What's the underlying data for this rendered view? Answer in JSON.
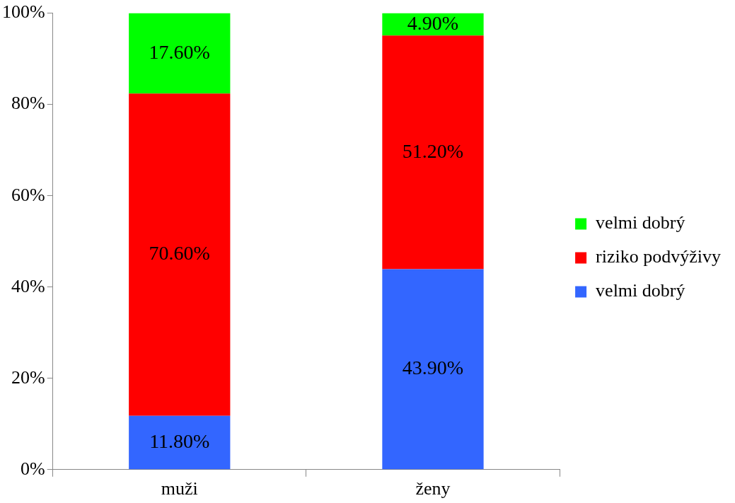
{
  "chart_data": {
    "type": "bar",
    "stacked": true,
    "categories": [
      "muži",
      "ženy"
    ],
    "ylim": [
      0,
      100
    ],
    "yticks": [
      {
        "value": 0,
        "label": "0%"
      },
      {
        "value": 20,
        "label": "20%"
      },
      {
        "value": 40,
        "label": "40%"
      },
      {
        "value": 60,
        "label": "60%"
      },
      {
        "value": 80,
        "label": "80%"
      },
      {
        "value": 100,
        "label": "100%"
      }
    ],
    "legend": "right",
    "series": [
      {
        "name": "velmi dobrý",
        "color": "#3366ff",
        "values": [
          11.8,
          43.9
        ],
        "value_labels": [
          "11.80%",
          "43.90%"
        ]
      },
      {
        "name": "riziko podvýživy",
        "color": "#ff0000",
        "values": [
          70.6,
          51.2
        ],
        "value_labels": [
          "70.60%",
          "51.20%"
        ]
      },
      {
        "name": "velmi dobrý",
        "color": "#00ff00",
        "values": [
          17.6,
          4.9
        ],
        "value_labels": [
          "17.60%",
          "4.90%"
        ]
      }
    ]
  }
}
